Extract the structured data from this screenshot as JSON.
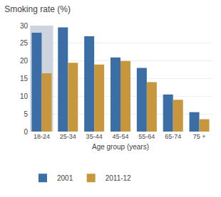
{
  "chart_data": {
    "type": "bar",
    "title": "Smoking rate (%)",
    "xlabel": "Age group (years)",
    "categories": [
      "18-24",
      "25-34",
      "35-44",
      "45-54",
      "55-64",
      "65-74",
      "75 +"
    ],
    "series": [
      {
        "color": "#c5ccd8",
        "values": [
          30.0,
          null,
          null,
          null,
          null,
          null,
          null
        ]
      },
      {
        "name": "2001",
        "color": "#3a6ea5",
        "values": [
          28.0,
          29.5,
          27.0,
          21.0,
          18.0,
          10.5,
          5.5
        ]
      },
      {
        "name": "2011-12",
        "color": "#c8963c",
        "values": [
          16.5,
          19.5,
          19.0,
          20.0,
          14.0,
          9.0,
          3.5
        ]
      }
    ],
    "ylim": [
      0,
      30
    ],
    "yticks": [
      0,
      5,
      10,
      15,
      20,
      25,
      30
    ],
    "grid": true,
    "legend": "bottom"
  }
}
